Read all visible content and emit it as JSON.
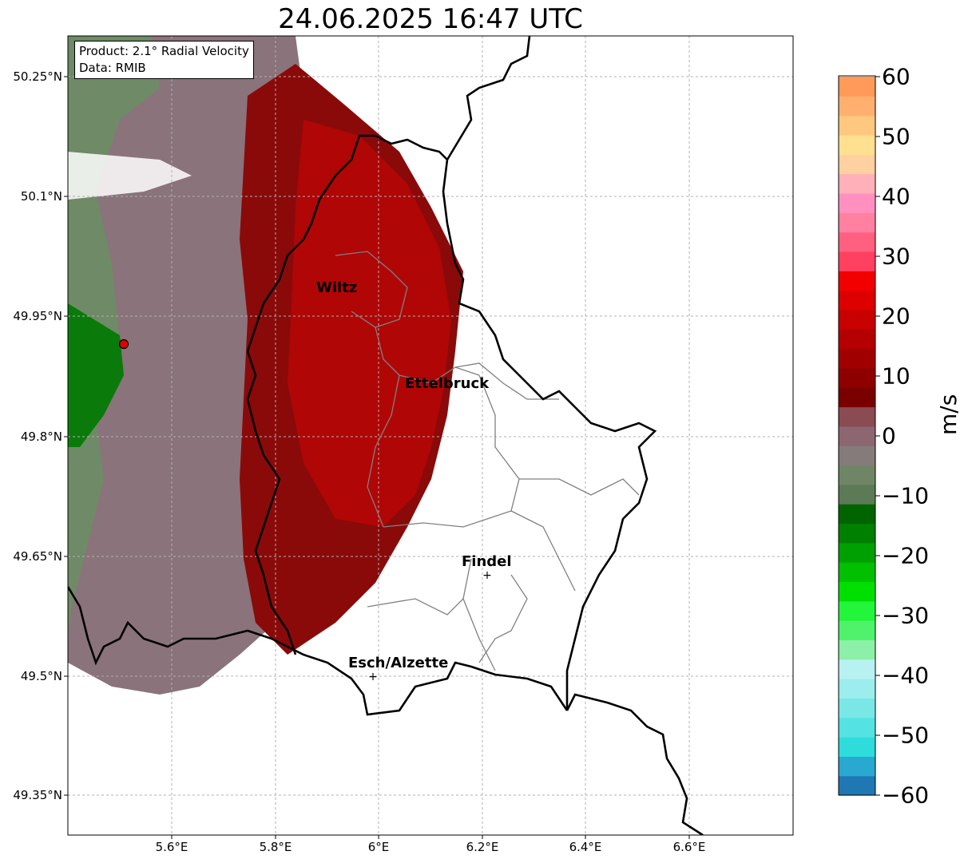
{
  "title": "24.06.2025 16:47 UTC",
  "info": {
    "product": "Product: 2.1° Radial Velocity",
    "data": "Data: RMIB"
  },
  "lat_labels": [
    "50.25°N",
    "50.1°N",
    "49.95°N",
    "49.8°N",
    "49.65°N",
    "49.5°N",
    "49.35°N"
  ],
  "lon_labels": [
    "5.6°E",
    "5.8°E",
    "6°E",
    "6.2°E",
    "6.4°E",
    "6.6°E"
  ],
  "cities": [
    {
      "name": "Wiltz"
    },
    {
      "name": "Ettelbruck"
    },
    {
      "name": "Findel"
    },
    {
      "name": "Esch/Alzette"
    }
  ],
  "colorbar": {
    "unit": "m/s",
    "ticks": [
      "60",
      "50",
      "40",
      "30",
      "20",
      "10",
      "0",
      "−10",
      "−20",
      "−30",
      "−40",
      "−50",
      "−60"
    ],
    "range": [
      -60,
      60
    ],
    "colors": [
      "#1f78b4",
      "#29a9cf",
      "#2edcdc",
      "#55e2e2",
      "#7ae7e7",
      "#9ceded",
      "#b8f1f1",
      "#8df0a8",
      "#4ff26a",
      "#22f53a",
      "#00e000",
      "#00c000",
      "#00a000",
      "#008000",
      "#006400",
      "#5c7a56",
      "#6f8666",
      "#857b7b",
      "#8c6671",
      "#8a4b52",
      "#7a0000",
      "#8e0000",
      "#a00000",
      "#b40000",
      "#c80000",
      "#dd0000",
      "#f20000",
      "#ff4060",
      "#ff6080",
      "#ff80a0",
      "#ff90c0",
      "#ffb0b8",
      "#ffd0a0",
      "#ffe090",
      "#ffc880",
      "#ffb070",
      "#ff9a58"
    ]
  },
  "radar": {
    "name": "radar-site"
  }
}
